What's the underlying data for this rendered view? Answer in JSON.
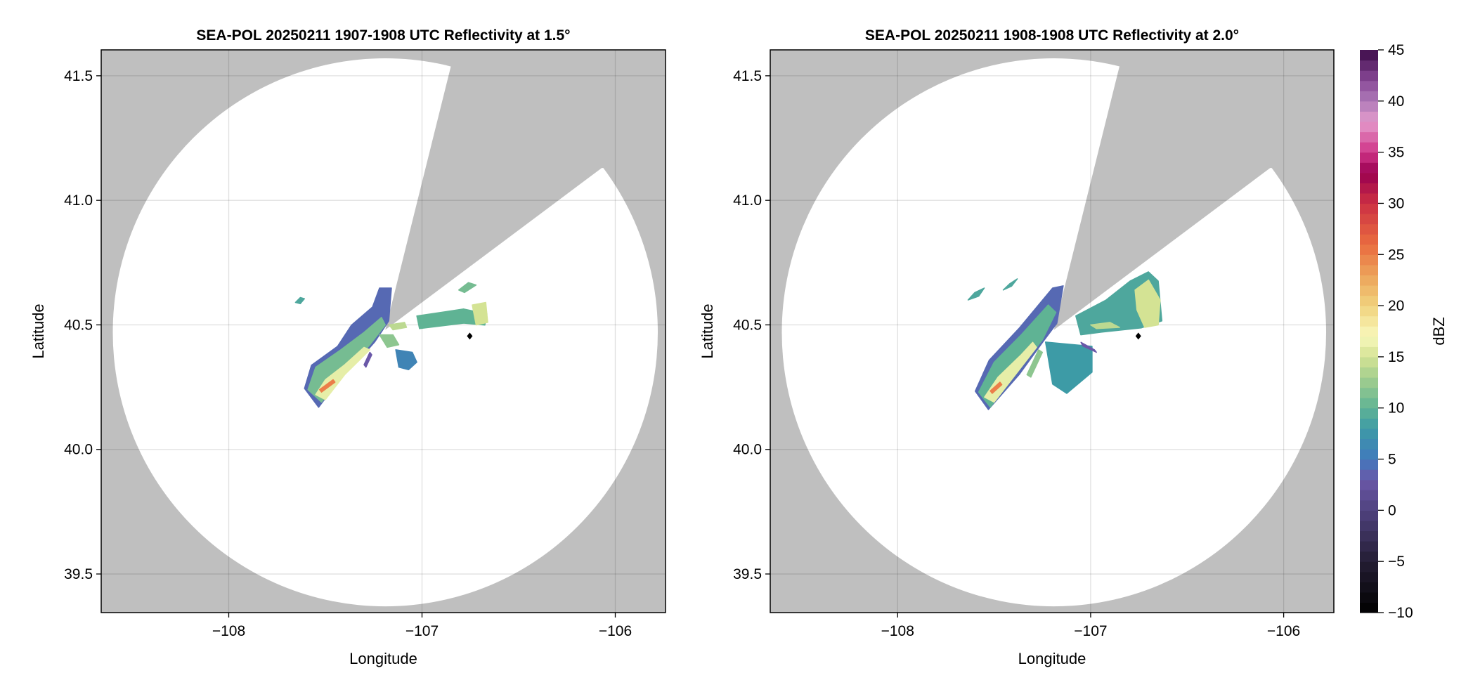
{
  "chart_data": [
    {
      "type": "heatmap",
      "title": "SEA-POL 20250211 1907-1908 UTC Reflectivity at 1.5°",
      "xlabel": "Longitude",
      "ylabel": "Latitude",
      "xlim": [
        -108.66,
        -105.74
      ],
      "ylim": [
        39.345,
        41.604
      ],
      "xticks": [
        -108,
        -107,
        -106
      ],
      "xtick_labels": [
        "−108",
        "−107",
        "−106"
      ],
      "yticks": [
        39.5,
        40.0,
        40.5,
        41.0,
        41.5
      ],
      "ytick_labels": [
        "39.5",
        "40.0",
        "40.5",
        "41.0",
        "41.5"
      ],
      "grid": true,
      "radar_center": [
        -107.19,
        40.47
      ],
      "range_radius_deg": {
        "lon": 1.41,
        "lat": 1.1
      },
      "blocked_sector": [
        [
          -107.19,
          40.48
        ],
        [
          -106.85,
          41.54
        ],
        [
          -106.07,
          41.13
        ]
      ],
      "marker": {
        "lon": -106.753,
        "lat": 40.455,
        "shape": "diamond"
      },
      "echoes": [
        {
          "dbz": 4,
          "points": [
            [
              -107.608,
              40.245
            ],
            [
              -107.572,
              40.338
            ],
            [
              -107.437,
              40.414
            ],
            [
              -107.365,
              40.499
            ],
            [
              -107.256,
              40.572
            ],
            [
              -107.22,
              40.648
            ],
            [
              -107.158,
              40.648
            ],
            [
              -107.172,
              40.516
            ],
            [
              -107.245,
              40.431
            ],
            [
              -107.328,
              40.358
            ],
            [
              -107.426,
              40.282
            ],
            [
              -107.535,
              40.169
            ]
          ]
        },
        {
          "dbz": 11,
          "points": [
            [
              -107.59,
              40.24
            ],
            [
              -107.55,
              40.33
            ],
            [
              -107.42,
              40.4
            ],
            [
              -107.3,
              40.47
            ],
            [
              -107.21,
              40.53
            ],
            [
              -107.19,
              40.5
            ],
            [
              -107.27,
              40.42
            ],
            [
              -107.38,
              40.33
            ],
            [
              -107.52,
              40.19
            ]
          ]
        },
        {
          "dbz": 16,
          "points": [
            [
              -107.55,
              40.22
            ],
            [
              -107.5,
              40.28
            ],
            [
              -107.4,
              40.34
            ],
            [
              -107.3,
              40.41
            ],
            [
              -107.27,
              40.4
            ],
            [
              -107.4,
              40.3
            ],
            [
              -107.5,
              40.2
            ]
          ]
        },
        {
          "dbz": 25,
          "points": [
            [
              -107.53,
              40.24
            ],
            [
              -107.46,
              40.28
            ],
            [
              -107.45,
              40.27
            ],
            [
              -107.52,
              40.23
            ]
          ]
        },
        {
          "dbz": 10,
          "points": [
            [
              -107.027,
              40.536
            ],
            [
              -106.784,
              40.564
            ],
            [
              -106.664,
              40.544
            ],
            [
              -106.675,
              40.499
            ],
            [
              -106.784,
              40.507
            ],
            [
              -107.013,
              40.485
            ]
          ]
        },
        {
          "dbz": 15,
          "points": [
            [
              -106.74,
              40.58
            ],
            [
              -106.67,
              40.59
            ],
            [
              -106.66,
              40.51
            ],
            [
              -106.72,
              40.5
            ]
          ]
        },
        {
          "dbz": 11,
          "points": [
            [
              -106.81,
              40.64
            ],
            [
              -106.76,
              40.67
            ],
            [
              -106.72,
              40.66
            ],
            [
              -106.78,
              40.63
            ]
          ]
        },
        {
          "dbz": 9,
          "points": [
            [
              -107.655,
              40.59
            ],
            [
              -107.63,
              40.61
            ],
            [
              -107.608,
              40.605
            ],
            [
              -107.63,
              40.585
            ]
          ]
        },
        {
          "dbz": 6,
          "points": [
            [
              -107.136,
              40.4
            ],
            [
              -107.05,
              40.39
            ],
            [
              -107.027,
              40.35
            ],
            [
              -107.07,
              40.32
            ],
            [
              -107.12,
              40.33
            ]
          ]
        },
        {
          "dbz": 12,
          "points": [
            [
              -107.22,
              40.46
            ],
            [
              -107.15,
              40.46
            ],
            [
              -107.12,
              40.42
            ],
            [
              -107.18,
              40.41
            ]
          ]
        },
        {
          "dbz": 14,
          "points": [
            [
              -107.17,
              40.5
            ],
            [
              -107.09,
              40.51
            ],
            [
              -107.08,
              40.49
            ],
            [
              -107.15,
              40.48
            ]
          ]
        },
        {
          "dbz": 3,
          "points": [
            [
              -107.3,
              40.34
            ],
            [
              -107.27,
              40.39
            ],
            [
              -107.26,
              40.38
            ],
            [
              -107.29,
              40.33
            ]
          ]
        }
      ]
    },
    {
      "type": "heatmap",
      "title": "SEA-POL 20250211 1908-1908 UTC Reflectivity at 2.0°",
      "xlabel": "Longitude",
      "ylabel": "Latitude",
      "xlim": [
        -108.66,
        -105.74
      ],
      "ylim": [
        39.345,
        41.604
      ],
      "xticks": [
        -108,
        -107,
        -106
      ],
      "xtick_labels": [
        "−108",
        "−107",
        "−106"
      ],
      "yticks": [
        39.5,
        40.0,
        40.5,
        41.0,
        41.5
      ],
      "ytick_labels": [
        "39.5",
        "40.0",
        "40.5",
        "41.0",
        "41.5"
      ],
      "grid": true,
      "radar_center": [
        -107.19,
        40.47
      ],
      "range_radius_deg": {
        "lon": 1.41,
        "lat": 1.1
      },
      "blocked_sector": [
        [
          -107.19,
          40.48
        ],
        [
          -106.85,
          41.54
        ],
        [
          -106.07,
          41.13
        ]
      ],
      "marker": {
        "lon": -106.753,
        "lat": 40.455,
        "shape": "diamond"
      },
      "echoes": [
        {
          "dbz": 4,
          "points": [
            [
              -107.598,
              40.234
            ],
            [
              -107.526,
              40.358
            ],
            [
              -107.369,
              40.488
            ],
            [
              -107.197,
              40.648
            ],
            [
              -107.142,
              40.657
            ],
            [
              -107.175,
              40.507
            ],
            [
              -107.248,
              40.431
            ],
            [
              -107.369,
              40.302
            ],
            [
              -107.53,
              40.16
            ]
          ]
        },
        {
          "dbz": 10,
          "points": [
            [
              -107.58,
              40.23
            ],
            [
              -107.5,
              40.35
            ],
            [
              -107.36,
              40.46
            ],
            [
              -107.22,
              40.58
            ],
            [
              -107.18,
              40.55
            ],
            [
              -107.25,
              40.44
            ],
            [
              -107.37,
              40.32
            ],
            [
              -107.52,
              40.17
            ]
          ]
        },
        {
          "dbz": 16,
          "points": [
            [
              -107.55,
              40.21
            ],
            [
              -107.48,
              40.29
            ],
            [
              -107.36,
              40.38
            ],
            [
              -107.3,
              40.43
            ],
            [
              -107.28,
              40.41
            ],
            [
              -107.38,
              40.31
            ],
            [
              -107.5,
              40.19
            ]
          ]
        },
        {
          "dbz": 25,
          "points": [
            [
              -107.52,
              40.235
            ],
            [
              -107.47,
              40.27
            ],
            [
              -107.46,
              40.26
            ],
            [
              -107.51,
              40.225
            ]
          ]
        },
        {
          "dbz": 9,
          "points": [
            [
              -107.077,
              40.536
            ],
            [
              -106.92,
              40.6
            ],
            [
              -106.796,
              40.676
            ],
            [
              -106.701,
              40.713
            ],
            [
              -106.65,
              40.676
            ],
            [
              -106.631,
              40.516
            ],
            [
              -106.737,
              40.488
            ],
            [
              -106.942,
              40.471
            ],
            [
              -107.051,
              40.46
            ]
          ]
        },
        {
          "dbz": 15,
          "points": [
            [
              -106.77,
              40.64
            ],
            [
              -106.7,
              40.68
            ],
            [
              -106.64,
              40.6
            ],
            [
              -106.65,
              40.5
            ],
            [
              -106.72,
              40.49
            ],
            [
              -106.76,
              40.56
            ]
          ]
        },
        {
          "dbz": 14,
          "points": [
            [
              -107.0,
              40.5
            ],
            [
              -106.9,
              40.51
            ],
            [
              -106.85,
              40.49
            ],
            [
              -106.97,
              40.485
            ]
          ]
        },
        {
          "dbz": 8,
          "points": [
            [
              -107.234,
              40.431
            ],
            [
              -106.993,
              40.414
            ],
            [
              -106.993,
              40.31
            ],
            [
              -107.124,
              40.225
            ],
            [
              -107.197,
              40.262
            ]
          ]
        },
        {
          "dbz": 9,
          "points": [
            [
              -107.635,
              40.6
            ],
            [
              -107.6,
              40.63
            ],
            [
              -107.551,
              40.648
            ],
            [
              -107.58,
              40.615
            ]
          ]
        },
        {
          "dbz": 9,
          "points": [
            [
              -107.453,
              40.64
            ],
            [
              -107.42,
              40.665
            ],
            [
              -107.38,
              40.685
            ],
            [
              -107.41,
              40.655
            ]
          ]
        },
        {
          "dbz": 3,
          "points": [
            [
              -107.05,
              40.43
            ],
            [
              -106.98,
              40.4
            ],
            [
              -106.97,
              40.39
            ],
            [
              -107.04,
              40.415
            ]
          ]
        },
        {
          "dbz": 12,
          "points": [
            [
              -107.33,
              40.3
            ],
            [
              -107.27,
              40.4
            ],
            [
              -107.25,
              40.39
            ],
            [
              -107.31,
              40.29
            ]
          ]
        }
      ]
    }
  ],
  "colorbar": {
    "label": "dBZ",
    "range": [
      -10,
      45
    ],
    "ticks": [
      -10,
      -5,
      0,
      5,
      10,
      15,
      20,
      25,
      30,
      35,
      40,
      45
    ],
    "tick_labels": [
      "−10",
      "−5",
      "0",
      "5",
      "10",
      "15",
      "20",
      "25",
      "30",
      "35",
      "40",
      "45"
    ],
    "color_stops": [
      [
        -10,
        "#000000"
      ],
      [
        -5,
        "#241d33"
      ],
      [
        0,
        "#4f427e"
      ],
      [
        3,
        "#6a58a8"
      ],
      [
        5,
        "#4179bd"
      ],
      [
        8,
        "#3d9ba6"
      ],
      [
        10,
        "#5fb394"
      ],
      [
        13,
        "#a4cf8e"
      ],
      [
        15,
        "#d4e394"
      ],
      [
        17,
        "#f8f8bc"
      ],
      [
        20,
        "#f1d37e"
      ],
      [
        23,
        "#eca35a"
      ],
      [
        26,
        "#ea6c40"
      ],
      [
        30,
        "#cc3043"
      ],
      [
        33,
        "#9a0050"
      ],
      [
        35,
        "#cf3488"
      ],
      [
        38,
        "#e49bcc"
      ],
      [
        40,
        "#ae7ab8"
      ],
      [
        42,
        "#8a4a98"
      ],
      [
        45,
        "#3c0a48"
      ]
    ]
  },
  "colors": {
    "blocked": "#bfbfbf",
    "in_range": "#ffffff",
    "grid": "#d6d6d6"
  }
}
